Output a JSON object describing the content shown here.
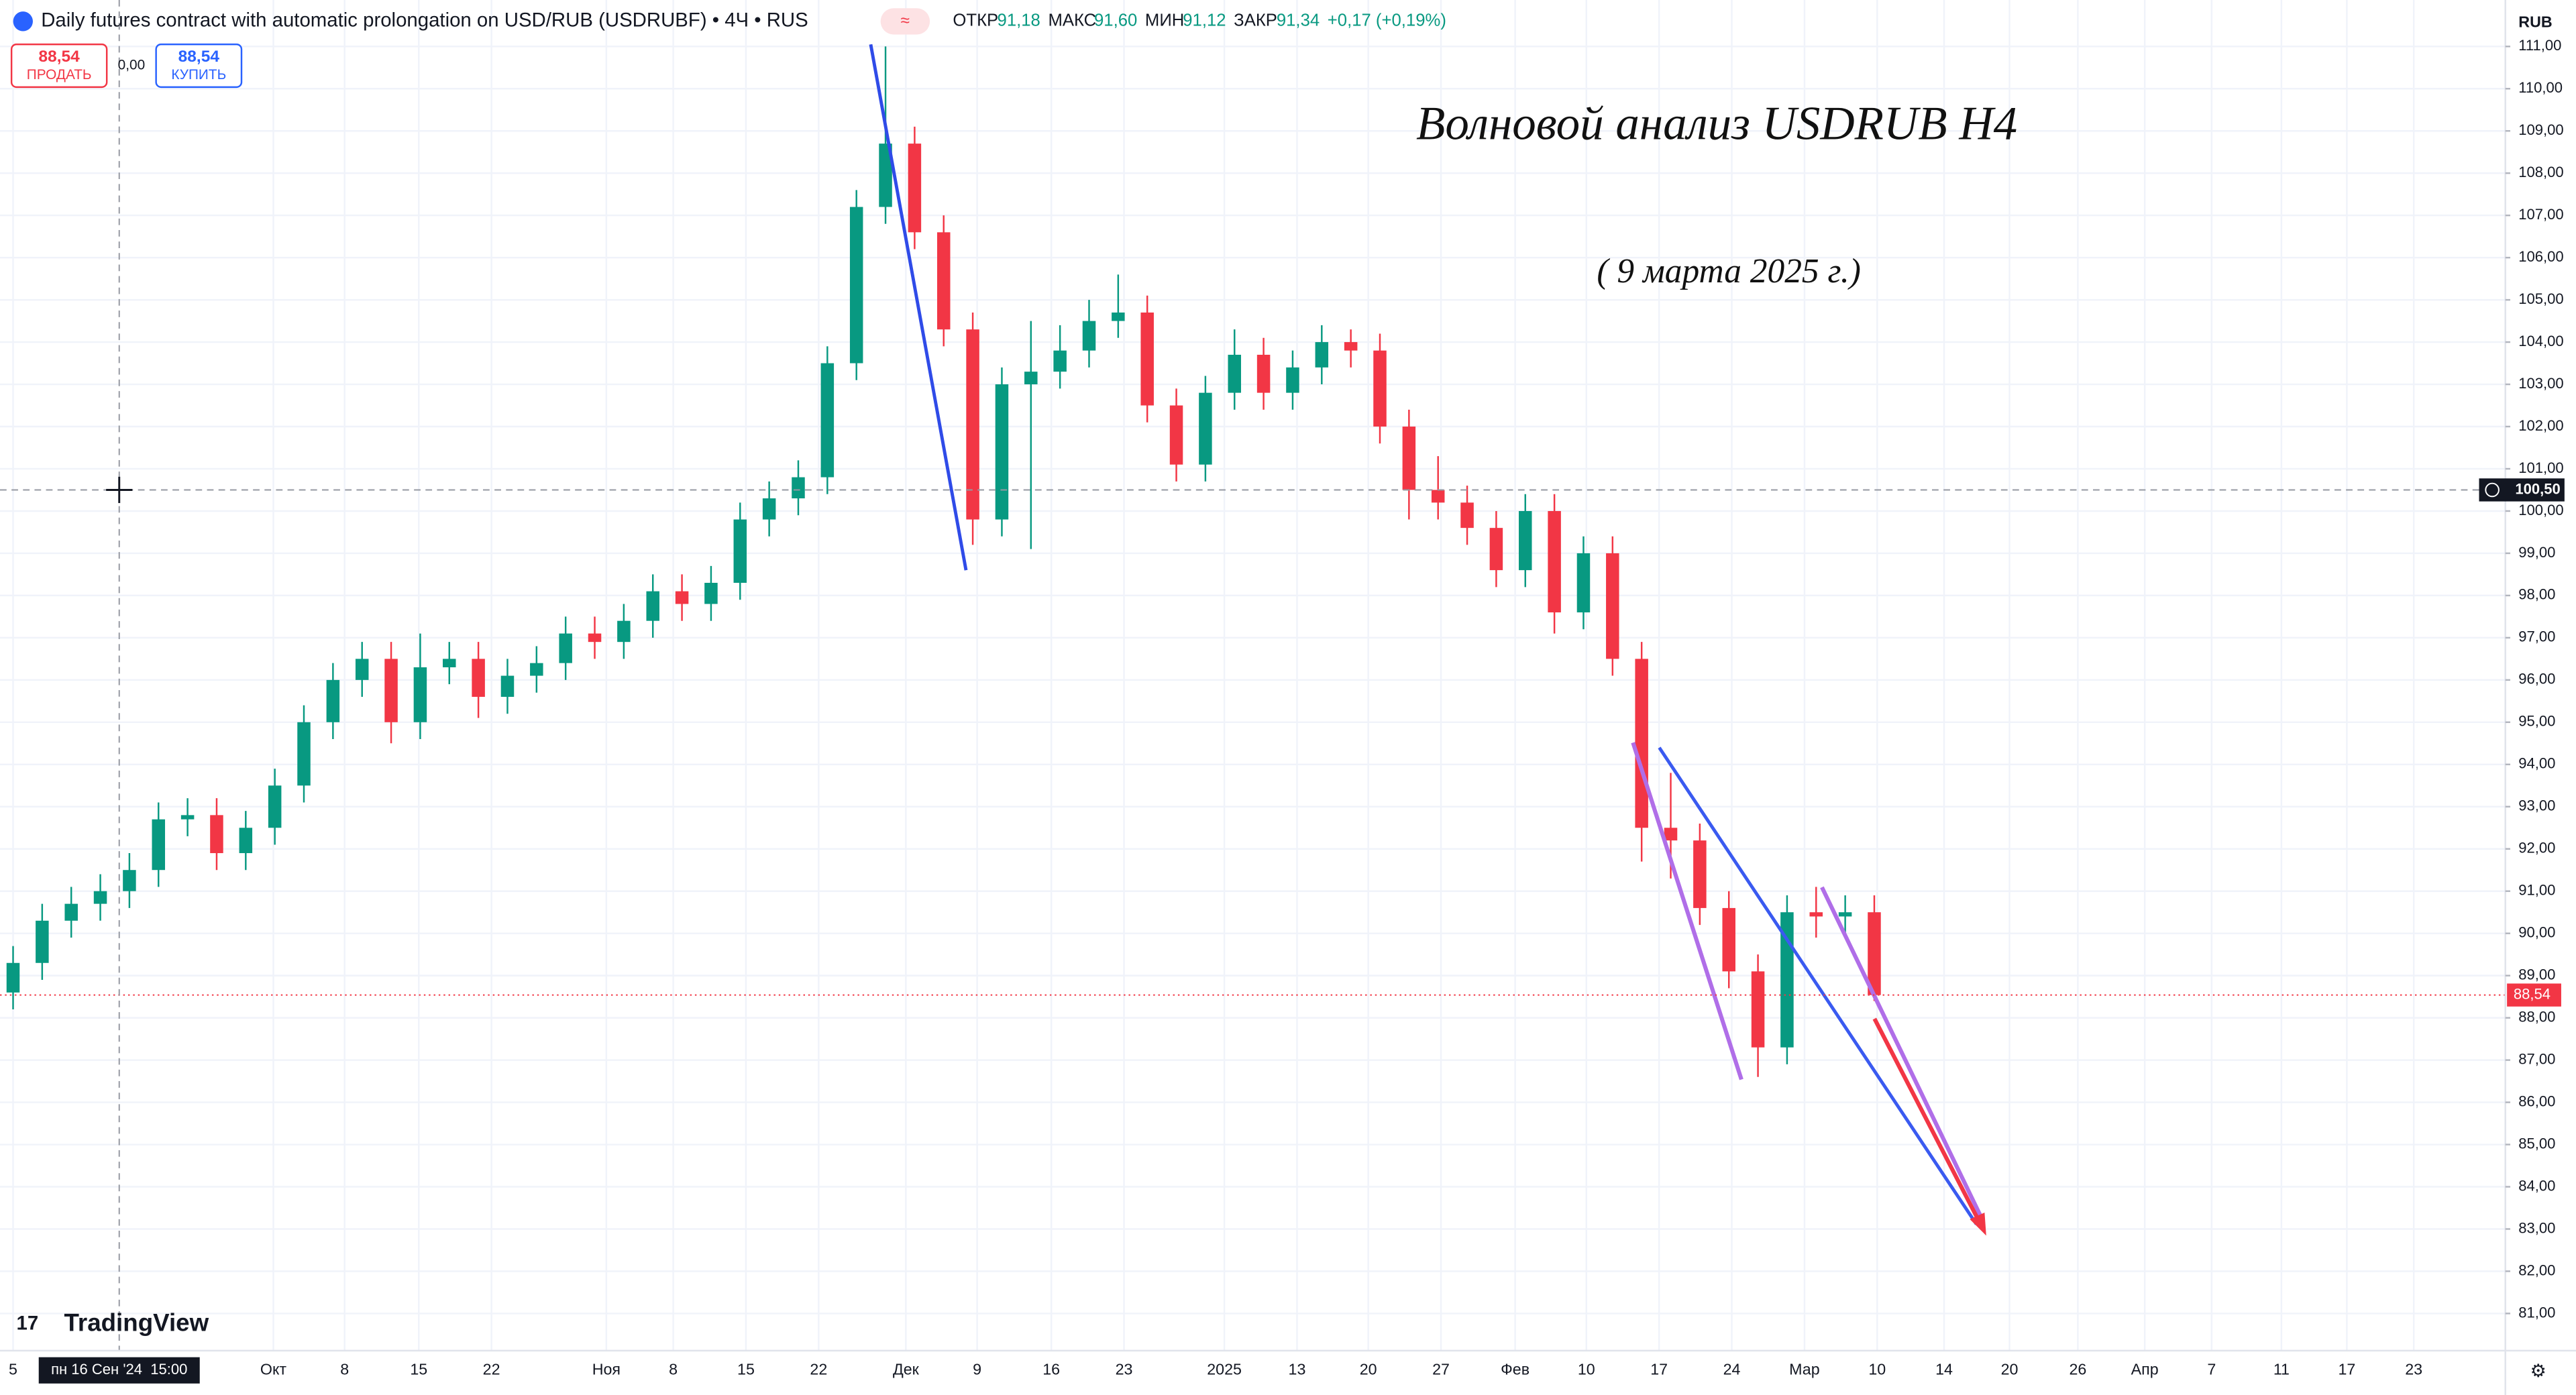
{
  "chart_data": {
    "type": "candlestick",
    "title": "Daily futures contract with automatic prolongation on USD/RUB (USDRUBF) • 4Ч • RUS",
    "ohlc_header": {
      "open_label": "ОТКР",
      "open": "91,18",
      "high_label": "МАКС",
      "high": "91,60",
      "low_label": "МИН",
      "low": "91,12",
      "close_label": "ЗАКР",
      "close": "91,34",
      "change": "+0,17 (+0,19%)"
    },
    "trade_buttons": {
      "sell_price": "88,54",
      "sell_label": "ПРОДАТЬ",
      "spread": "0,00",
      "buy_price": "88,54",
      "buy_label": "КУПИТЬ"
    },
    "annotations": [
      "Волновой анализ USDRUB H4",
      "( 9 марта 2025 г.)"
    ],
    "currency": "RUB",
    "brand": "TradingView",
    "up_color": "#089981",
    "down_color": "#f23645",
    "grid": true,
    "x": [
      0,
      2,
      4,
      6,
      8,
      10,
      12,
      14,
      16,
      18,
      20,
      22,
      24,
      26,
      28,
      30,
      32,
      34,
      36,
      38,
      40,
      42,
      44,
      46,
      48,
      50,
      52,
      54,
      56,
      58,
      60,
      62,
      64,
      66,
      68,
      70,
      72,
      74,
      76,
      78,
      80,
      82,
      84,
      86,
      88,
      90,
      92,
      94,
      96,
      98,
      100,
      102,
      104,
      106,
      108,
      110,
      112,
      114,
      116,
      118,
      120,
      122,
      124,
      126,
      128
    ],
    "open": [
      88.6,
      89.3,
      90.3,
      90.7,
      91,
      91.5,
      92.7,
      92.8,
      91.9,
      92.5,
      93.5,
      95,
      96,
      96.5,
      95,
      96.3,
      96.5,
      95.6,
      96.1,
      96.4,
      97.1,
      96.9,
      97.4,
      98.1,
      97.8,
      98.3,
      99.8,
      100.3,
      100.8,
      103.5,
      107.2,
      108.7,
      106.6,
      104.3,
      99.8,
      103,
      103.3,
      103.8,
      104.5,
      104.7,
      102.5,
      101.1,
      102.8,
      103.7,
      102.8,
      103.4,
      104,
      103.8,
      102,
      100.5,
      100.2,
      99.6,
      98.6,
      100,
      97.6,
      99,
      96.5,
      92.5,
      92.2,
      90.6,
      89.1,
      87.3,
      90.5,
      90.4,
      90.5
    ],
    "high": [
      89.7,
      90.7,
      91.1,
      91.4,
      91.9,
      93.1,
      93.2,
      93.2,
      92.9,
      93.9,
      95.4,
      96.4,
      96.9,
      96.9,
      97.1,
      96.9,
      96.9,
      96.5,
      96.8,
      97.5,
      97.5,
      97.8,
      98.5,
      98.5,
      98.7,
      100.2,
      100.7,
      101.2,
      103.9,
      107.6,
      111,
      109.1,
      107,
      104.7,
      103.4,
      104.5,
      104.4,
      105,
      105.6,
      105.1,
      102.9,
      103.2,
      104.3,
      104.1,
      103.8,
      104.4,
      104.3,
      104.2,
      102.4,
      101.3,
      100.6,
      100,
      100.4,
      100.4,
      99.4,
      99.4,
      96.9,
      93.8,
      92.6,
      91,
      89.5,
      90.9,
      91.1,
      90.9,
      90.9
    ],
    "low": [
      88.2,
      88.9,
      89.9,
      90.3,
      90.6,
      91.1,
      92.3,
      91.5,
      91.5,
      92.1,
      93.1,
      94.6,
      95.6,
      94.5,
      94.6,
      95.9,
      95.1,
      95.2,
      95.7,
      96,
      96.5,
      96.5,
      97,
      97.4,
      97.4,
      97.9,
      99.4,
      99.9,
      100.4,
      103.1,
      106.8,
      106.2,
      103.9,
      99.2,
      99.4,
      99.1,
      102.9,
      103.4,
      104.1,
      102.1,
      100.7,
      100.7,
      102.4,
      102.4,
      102.4,
      103,
      103.4,
      101.6,
      99.8,
      99.8,
      99.2,
      98.2,
      98.2,
      97.1,
      97.2,
      96.1,
      91.7,
      91.3,
      90.2,
      88.7,
      86.6,
      86.9,
      89.9,
      89.9,
      88.4
    ],
    "close": [
      89.3,
      90.3,
      90.7,
      91,
      91.5,
      92.7,
      92.8,
      91.9,
      92.5,
      93.5,
      95,
      96,
      96.5,
      95,
      96.3,
      96.5,
      95.6,
      96.1,
      96.4,
      97.1,
      96.9,
      97.4,
      98.1,
      97.8,
      98.3,
      99.8,
      100.3,
      100.8,
      103.5,
      107.2,
      108.7,
      106.6,
      104.3,
      99.8,
      103,
      103.3,
      103.8,
      104.5,
      104.7,
      102.5,
      101.1,
      102.8,
      103.7,
      102.8,
      103.4,
      104,
      103.8,
      102,
      100.5,
      100.2,
      99.6,
      98.6,
      100,
      97.6,
      99,
      96.5,
      92.5,
      92.2,
      90.6,
      89.1,
      87.3,
      90.5,
      90.4,
      90.5,
      88.54
    ],
    "last_price": {
      "value": 88.54,
      "label": "88,54"
    },
    "crosshair": {
      "x": 7.3,
      "price": {
        "value": 100.5,
        "label": "100,50"
      },
      "date_label": "пн 16 Сен '24  15:00"
    },
    "xlim": [
      -0.9,
      171.4
    ],
    "xticks": [
      {
        "value": 0,
        "label": "5"
      },
      {
        "value": 17.9,
        "label": "Окт"
      },
      {
        "value": 22.8,
        "label": "8"
      },
      {
        "value": 27.9,
        "label": "15"
      },
      {
        "value": 32.9,
        "label": "22"
      },
      {
        "value": 40.8,
        "label": "Ноя"
      },
      {
        "value": 45.4,
        "label": "8"
      },
      {
        "value": 50.4,
        "label": "15"
      },
      {
        "value": 55.4,
        "label": "22"
      },
      {
        "value": 61.4,
        "label": "Дек"
      },
      {
        "value": 66.3,
        "label": "9"
      },
      {
        "value": 71.4,
        "label": "16"
      },
      {
        "value": 76.4,
        "label": "23"
      },
      {
        "value": 83.3,
        "label": "2025"
      },
      {
        "value": 88.3,
        "label": "13"
      },
      {
        "value": 93.2,
        "label": "20"
      },
      {
        "value": 98.2,
        "label": "27"
      },
      {
        "value": 103.3,
        "label": "Фев"
      },
      {
        "value": 108.2,
        "label": "10"
      },
      {
        "value": 113.2,
        "label": "17"
      },
      {
        "value": 118.2,
        "label": "24"
      },
      {
        "value": 123.2,
        "label": "Мар"
      },
      {
        "value": 128.2,
        "label": "10"
      },
      {
        "value": 132.8,
        "label": "14"
      },
      {
        "value": 137.3,
        "label": "20"
      },
      {
        "value": 142,
        "label": "26"
      },
      {
        "value": 146.6,
        "label": "Апр"
      },
      {
        "value": 151.2,
        "label": "7"
      },
      {
        "value": 156,
        "label": "11"
      },
      {
        "value": 160.5,
        "label": "17"
      },
      {
        "value": 165.1,
        "label": "23"
      }
    ],
    "ylim": [
      80.12,
      112.1
    ],
    "yticks": [
      {
        "value": 81,
        "label": "81,00"
      },
      {
        "value": 82,
        "label": "82,00"
      },
      {
        "value": 83,
        "label": "83,00"
      },
      {
        "value": 84,
        "label": "84,00"
      },
      {
        "value": 85,
        "label": "85,00"
      },
      {
        "value": 86,
        "label": "86,00"
      },
      {
        "value": 87,
        "label": "87,00"
      },
      {
        "value": 88,
        "label": "88,00"
      },
      {
        "value": 89,
        "label": "89,00"
      },
      {
        "value": 90,
        "label": "90,00"
      },
      {
        "value": 91,
        "label": "91,00"
      },
      {
        "value": 92,
        "label": "92,00"
      },
      {
        "value": 93,
        "label": "93,00"
      },
      {
        "value": 94,
        "label": "94,00"
      },
      {
        "value": 95,
        "label": "95,00"
      },
      {
        "value": 96,
        "label": "96,00"
      },
      {
        "value": 97,
        "label": "97,00"
      },
      {
        "value": 98,
        "label": "98,00"
      },
      {
        "value": 99,
        "label": "99,00"
      },
      {
        "value": 100,
        "label": "100,00"
      },
      {
        "value": 101,
        "label": "101,00"
      },
      {
        "value": 102,
        "label": "102,00"
      },
      {
        "value": 103,
        "label": "103,00"
      },
      {
        "value": 104,
        "label": "104,00"
      },
      {
        "value": 105,
        "label": "105,00"
      },
      {
        "value": 106,
        "label": "106,00"
      },
      {
        "value": 107,
        "label": "107,00"
      },
      {
        "value": 108,
        "label": "108,00"
      },
      {
        "value": 109,
        "label": "109,00"
      },
      {
        "value": 110,
        "label": "110,00"
      },
      {
        "value": 111,
        "label": "111,00"
      }
    ]
  }
}
